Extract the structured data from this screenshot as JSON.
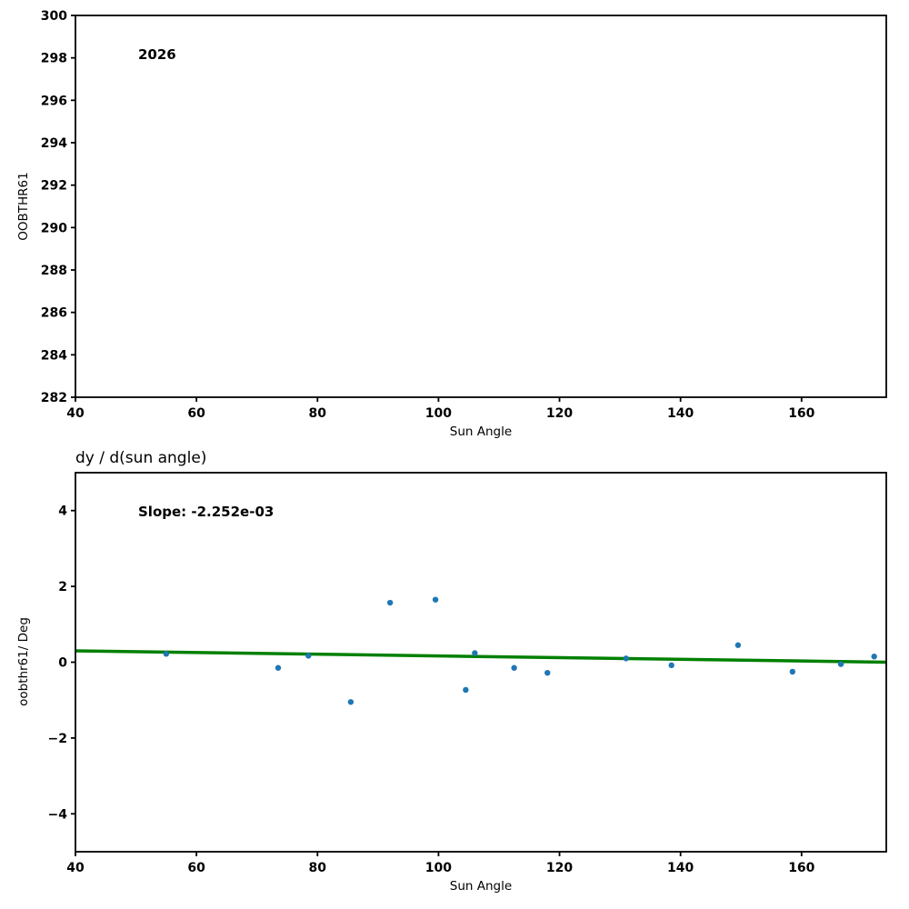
{
  "figure": {
    "background": "#ffffff",
    "spine_color": "#000000",
    "text_color": "#000000"
  },
  "chart_data": [
    {
      "type": "scatter",
      "title": "",
      "annotation": "2026",
      "xlabel": "Sun Angle",
      "ylabel": "OOBTHR61",
      "xlim": [
        40,
        174
      ],
      "ylim": [
        282,
        300
      ],
      "xticks": [
        40,
        60,
        80,
        100,
        120,
        140,
        160
      ],
      "xtick_labels": [
        "40",
        "60",
        "80",
        "100",
        "120",
        "140",
        "160"
      ],
      "yticks": [
        282,
        284,
        286,
        288,
        290,
        292,
        294,
        296,
        298,
        300
      ],
      "ytick_labels": [
        "282",
        "284",
        "286",
        "288",
        "290",
        "292",
        "294",
        "296",
        "298",
        "300"
      ],
      "grid": false,
      "legend": null,
      "point_color": "#1f77b4",
      "points": []
    },
    {
      "type": "scatter",
      "title": "dy / d(sun angle)",
      "annotation": "Slope: -2.252e-03",
      "slope": "-2.252e-03",
      "xlabel": "Sun Angle",
      "ylabel": "oobthr61/ Deg",
      "xlim": [
        40,
        174
      ],
      "ylim": [
        -5,
        5
      ],
      "xticks": [
        40,
        60,
        80,
        100,
        120,
        140,
        160
      ],
      "xtick_labels": [
        "40",
        "60",
        "80",
        "100",
        "120",
        "140",
        "160"
      ],
      "yticks": [
        -4,
        -2,
        0,
        2,
        4
      ],
      "ytick_labels": [
        "−4",
        "−2",
        "0",
        "2",
        "4"
      ],
      "grid": false,
      "legend": null,
      "point_color": "#1f77b4",
      "points": [
        [
          55.0,
          0.22
        ],
        [
          73.5,
          -0.15
        ],
        [
          78.5,
          0.17
        ],
        [
          85.5,
          -1.05
        ],
        [
          92.0,
          1.57
        ],
        [
          99.5,
          1.65
        ],
        [
          104.5,
          -0.73
        ],
        [
          106.0,
          0.24
        ],
        [
          112.5,
          -0.15
        ],
        [
          118.0,
          -0.28
        ],
        [
          131.0,
          0.1
        ],
        [
          138.5,
          -0.08
        ],
        [
          149.5,
          0.45
        ],
        [
          158.5,
          -0.25
        ],
        [
          166.5,
          -0.05
        ],
        [
          172.0,
          0.15
        ]
      ],
      "fit_line": {
        "color": "#008000",
        "endpoints": [
          [
            40,
            0.3
          ],
          [
            174,
            0.0
          ]
        ]
      }
    }
  ]
}
